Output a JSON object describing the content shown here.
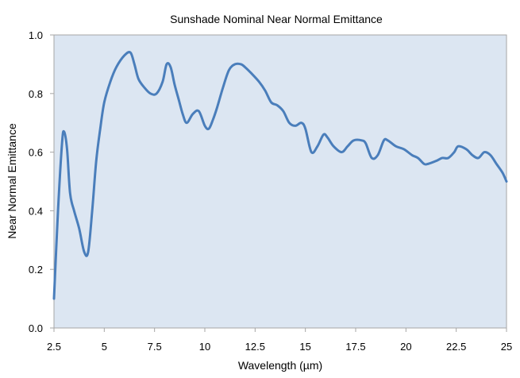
{
  "chart_data": {
    "type": "line",
    "title": "Sunshade Nominal Near Normal Emittance",
    "xlabel": "Wavelength (µm)",
    "ylabel": "Near Normal Emittance",
    "xlim": [
      2.5,
      25
    ],
    "ylim": [
      0,
      1
    ],
    "xticks": [
      "2.5",
      "5",
      "7.5",
      "10",
      "12.5",
      "15",
      "17.5",
      "20",
      "22.5",
      "25"
    ],
    "yticks": [
      "0.0",
      "0.2",
      "0.4",
      "0.6",
      "0.8",
      "1.0"
    ],
    "grid": false,
    "legend": "none",
    "series": [
      {
        "color": "#4a7ebb",
        "x": [
          2.5,
          2.7,
          2.9,
          3.0,
          3.15,
          3.3,
          3.5,
          3.75,
          4.0,
          4.2,
          4.4,
          4.6,
          4.8,
          5.0,
          5.3,
          5.6,
          6.0,
          6.3,
          6.5,
          6.7,
          7.0,
          7.3,
          7.6,
          7.9,
          8.1,
          8.3,
          8.5,
          8.7,
          8.9,
          9.1,
          9.4,
          9.7,
          10.0,
          10.2,
          10.4,
          10.6,
          10.9,
          11.2,
          11.5,
          11.8,
          12.0,
          12.3,
          12.7,
          13.0,
          13.3,
          13.6,
          13.9,
          14.2,
          14.5,
          14.8,
          15.0,
          15.3,
          15.6,
          15.9,
          16.1,
          16.4,
          16.8,
          17.1,
          17.4,
          17.8,
          18.0,
          18.3,
          18.6,
          18.9,
          19.1,
          19.5,
          19.9,
          20.3,
          20.6,
          20.9,
          21.1,
          21.5,
          21.8,
          22.1,
          22.4,
          22.6,
          23.0,
          23.3,
          23.6,
          23.9,
          24.2,
          24.5,
          24.8,
          25.0
        ],
        "values": [
          0.1,
          0.4,
          0.63,
          0.67,
          0.61,
          0.46,
          0.4,
          0.34,
          0.26,
          0.26,
          0.4,
          0.57,
          0.68,
          0.77,
          0.84,
          0.89,
          0.93,
          0.94,
          0.9,
          0.85,
          0.82,
          0.8,
          0.8,
          0.84,
          0.9,
          0.89,
          0.83,
          0.78,
          0.73,
          0.7,
          0.73,
          0.74,
          0.69,
          0.68,
          0.71,
          0.75,
          0.82,
          0.88,
          0.9,
          0.9,
          0.89,
          0.87,
          0.84,
          0.81,
          0.77,
          0.76,
          0.74,
          0.7,
          0.69,
          0.7,
          0.68,
          0.6,
          0.62,
          0.66,
          0.65,
          0.62,
          0.6,
          0.62,
          0.64,
          0.64,
          0.63,
          0.58,
          0.59,
          0.64,
          0.64,
          0.62,
          0.61,
          0.59,
          0.58,
          0.56,
          0.56,
          0.57,
          0.58,
          0.58,
          0.6,
          0.62,
          0.61,
          0.59,
          0.58,
          0.6,
          0.59,
          0.56,
          0.53,
          0.5
        ]
      }
    ]
  }
}
